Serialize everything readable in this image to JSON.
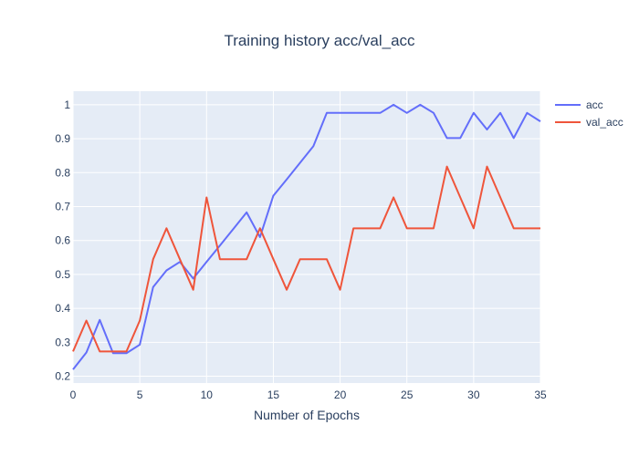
{
  "chart_data": {
    "type": "line",
    "title": "Training history acc/val_acc",
    "xlabel": "Number of Epochs",
    "ylabel": "",
    "xlim": [
      0,
      35
    ],
    "ylim": [
      0.18,
      1.04
    ],
    "x_ticks": [
      0,
      5,
      10,
      15,
      20,
      25,
      30,
      35
    ],
    "y_ticks": [
      0.2,
      0.3,
      0.4,
      0.5,
      0.6,
      0.7,
      0.8,
      0.9,
      1
    ],
    "grid": true,
    "legend_position": "top-right",
    "x": [
      0,
      1,
      2,
      3,
      4,
      5,
      6,
      7,
      8,
      9,
      10,
      11,
      12,
      13,
      14,
      15,
      16,
      17,
      18,
      19,
      20,
      21,
      22,
      23,
      24,
      25,
      26,
      27,
      28,
      29,
      30,
      31,
      32,
      33,
      34,
      35
    ],
    "series": [
      {
        "name": "acc",
        "color": "#636efa",
        "values": [
          0.22,
          0.27,
          0.366,
          0.268,
          0.268,
          0.293,
          0.463,
          0.512,
          0.537,
          0.488,
          0.537,
          0.585,
          0.634,
          0.683,
          0.61,
          0.732,
          0.78,
          0.829,
          0.878,
          0.976,
          0.976,
          0.976,
          0.976,
          0.976,
          1.0,
          0.976,
          1.0,
          0.976,
          0.902,
          0.902,
          0.976,
          0.927,
          0.976,
          0.902,
          0.976,
          0.951
        ]
      },
      {
        "name": "val_acc",
        "color": "#ef553b",
        "values": [
          0.273,
          0.364,
          0.273,
          0.273,
          0.273,
          0.364,
          0.545,
          0.636,
          0.545,
          0.455,
          0.727,
          0.545,
          0.545,
          0.545,
          0.636,
          0.545,
          0.455,
          0.545,
          0.545,
          0.545,
          0.455,
          0.636,
          0.636,
          0.636,
          0.727,
          0.636,
          0.636,
          0.636,
          0.818,
          0.727,
          0.636,
          0.818,
          0.727,
          0.636,
          0.636,
          0.636
        ]
      }
    ]
  }
}
